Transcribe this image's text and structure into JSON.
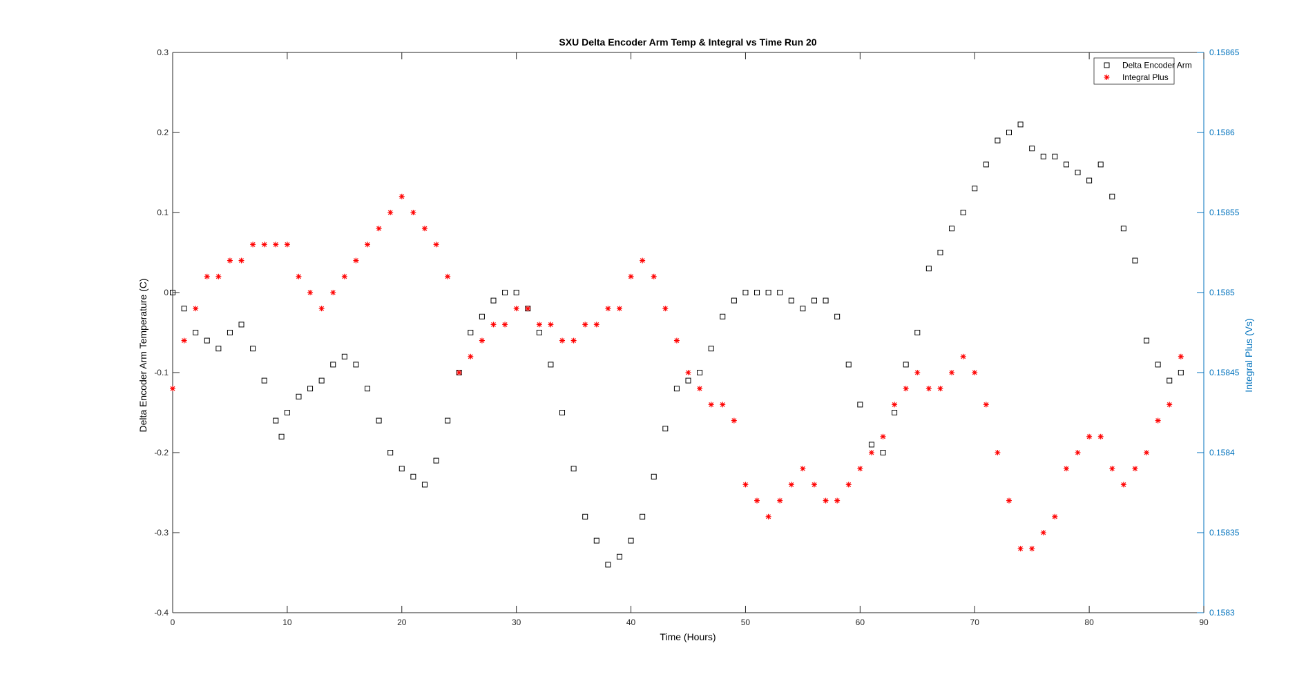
{
  "chart_data": {
    "type": "scatter",
    "title": "SXU Delta Encoder Arm Temp & Integral vs Time Run 20",
    "xlabel": "Time (Hours)",
    "ylabel_left": "Delta Encoder Arm Temperature (C)",
    "ylabel_right": "Integral Plus (Vs)",
    "xlim": [
      0,
      90
    ],
    "ylim_left": [
      -0.4,
      0.3
    ],
    "ylim_right": [
      0.1583,
      0.15865
    ],
    "x_ticks": [
      "0",
      "10",
      "20",
      "30",
      "40",
      "50",
      "60",
      "70",
      "80",
      "90"
    ],
    "y_ticks_left": [
      "-0.4",
      "-0.3",
      "-0.2",
      "-0.1",
      "0",
      "0.1",
      "0.2",
      "0.3"
    ],
    "y_ticks_right": [
      "0.1583",
      "0.15835",
      "0.1584",
      "0.15845",
      "0.1585",
      "0.15855",
      "0.1586",
      "0.15865"
    ],
    "grid": false,
    "legend_position": "top-right",
    "colors": {
      "left_axis": "#000000",
      "right_axis": "#0072BD",
      "series1": "#000000",
      "series2": "#FF0000"
    },
    "series": [
      {
        "name": "Delta Encoder Arm",
        "axis": "left",
        "marker": "square",
        "points": [
          [
            0,
            0
          ],
          [
            1,
            -0.02
          ],
          [
            2,
            -0.05
          ],
          [
            3,
            -0.06
          ],
          [
            4,
            -0.07
          ],
          [
            5,
            -0.05
          ],
          [
            6,
            -0.04
          ],
          [
            7,
            -0.07
          ],
          [
            8,
            -0.11
          ],
          [
            9,
            -0.16
          ],
          [
            9.5,
            -0.18
          ],
          [
            10,
            -0.15
          ],
          [
            11,
            -0.13
          ],
          [
            12,
            -0.12
          ],
          [
            13,
            -0.11
          ],
          [
            14,
            -0.09
          ],
          [
            15,
            -0.08
          ],
          [
            16,
            -0.09
          ],
          [
            17,
            -0.12
          ],
          [
            18,
            -0.16
          ],
          [
            19,
            -0.2
          ],
          [
            20,
            -0.22
          ],
          [
            21,
            -0.23
          ],
          [
            22,
            -0.24
          ],
          [
            23,
            -0.21
          ],
          [
            24,
            -0.16
          ],
          [
            25,
            -0.1
          ],
          [
            26,
            -0.05
          ],
          [
            27,
            -0.03
          ],
          [
            28,
            -0.01
          ],
          [
            29,
            0
          ],
          [
            30,
            0
          ],
          [
            31,
            -0.02
          ],
          [
            32,
            -0.05
          ],
          [
            33,
            -0.09
          ],
          [
            34,
            -0.15
          ],
          [
            35,
            -0.22
          ],
          [
            36,
            -0.28
          ],
          [
            37,
            -0.31
          ],
          [
            38,
            -0.34
          ],
          [
            39,
            -0.33
          ],
          [
            40,
            -0.31
          ],
          [
            41,
            -0.28
          ],
          [
            42,
            -0.23
          ],
          [
            43,
            -0.17
          ],
          [
            44,
            -0.12
          ],
          [
            45,
            -0.11
          ],
          [
            46,
            -0.1
          ],
          [
            47,
            -0.07
          ],
          [
            48,
            -0.03
          ],
          [
            49,
            -0.01
          ],
          [
            50,
            0
          ],
          [
            51,
            0
          ],
          [
            52,
            0
          ],
          [
            53,
            0
          ],
          [
            54,
            -0.01
          ],
          [
            55,
            -0.02
          ],
          [
            56,
            -0.01
          ],
          [
            57,
            -0.01
          ],
          [
            58,
            -0.03
          ],
          [
            59,
            -0.09
          ],
          [
            60,
            -0.14
          ],
          [
            61,
            -0.19
          ],
          [
            62,
            -0.2
          ],
          [
            63,
            -0.15
          ],
          [
            64,
            -0.09
          ],
          [
            65,
            -0.05
          ],
          [
            66,
            0.03
          ],
          [
            67,
            0.05
          ],
          [
            68,
            0.08
          ],
          [
            69,
            0.1
          ],
          [
            70,
            0.13
          ],
          [
            71,
            0.16
          ],
          [
            72,
            0.19
          ],
          [
            73,
            0.2
          ],
          [
            74,
            0.21
          ],
          [
            75,
            0.18
          ],
          [
            76,
            0.17
          ],
          [
            77,
            0.17
          ],
          [
            78,
            0.16
          ],
          [
            79,
            0.15
          ],
          [
            80,
            0.14
          ],
          [
            81,
            0.16
          ],
          [
            82,
            0.12
          ],
          [
            83,
            0.08
          ],
          [
            84,
            0.04
          ],
          [
            85,
            -0.06
          ],
          [
            86,
            -0.09
          ],
          [
            87,
            -0.11
          ],
          [
            88,
            -0.1
          ]
        ]
      },
      {
        "name": "Integral Plus",
        "axis": "right",
        "marker": "asterisk",
        "points": [
          [
            0,
            0.15844
          ],
          [
            1,
            0.15847
          ],
          [
            2,
            0.15849
          ],
          [
            3,
            0.15851
          ],
          [
            4,
            0.15851
          ],
          [
            5,
            0.15852
          ],
          [
            6,
            0.15852
          ],
          [
            7,
            0.15853
          ],
          [
            8,
            0.15853
          ],
          [
            9,
            0.15853
          ],
          [
            10,
            0.15853
          ],
          [
            11,
            0.15851
          ],
          [
            12,
            0.1585
          ],
          [
            13,
            0.15849
          ],
          [
            14,
            0.1585
          ],
          [
            15,
            0.15851
          ],
          [
            16,
            0.15852
          ],
          [
            17,
            0.15853
          ],
          [
            18,
            0.15854
          ],
          [
            19,
            0.15855
          ],
          [
            20,
            0.15856
          ],
          [
            21,
            0.15855
          ],
          [
            22,
            0.15854
          ],
          [
            23,
            0.15853
          ],
          [
            24,
            0.15851
          ],
          [
            25,
            0.15845
          ],
          [
            26,
            0.15846
          ],
          [
            27,
            0.15847
          ],
          [
            28,
            0.15848
          ],
          [
            29,
            0.15848
          ],
          [
            30,
            0.15849
          ],
          [
            31,
            0.15849
          ],
          [
            32,
            0.15848
          ],
          [
            33,
            0.15848
          ],
          [
            34,
            0.15847
          ],
          [
            35,
            0.15847
          ],
          [
            36,
            0.15848
          ],
          [
            37,
            0.15848
          ],
          [
            38,
            0.15849
          ],
          [
            39,
            0.15849
          ],
          [
            40,
            0.15851
          ],
          [
            41,
            0.15852
          ],
          [
            42,
            0.15851
          ],
          [
            43,
            0.15849
          ],
          [
            44,
            0.15847
          ],
          [
            45,
            0.15845
          ],
          [
            46,
            0.15844
          ],
          [
            47,
            0.15843
          ],
          [
            48,
            0.15843
          ],
          [
            49,
            0.15842
          ],
          [
            50,
            0.15838
          ],
          [
            51,
            0.15837
          ],
          [
            52,
            0.15836
          ],
          [
            53,
            0.15837
          ],
          [
            54,
            0.15838
          ],
          [
            55,
            0.15839
          ],
          [
            56,
            0.15838
          ],
          [
            57,
            0.15837
          ],
          [
            58,
            0.15837
          ],
          [
            59,
            0.15838
          ],
          [
            60,
            0.15839
          ],
          [
            61,
            0.1584
          ],
          [
            62,
            0.15841
          ],
          [
            63,
            0.15843
          ],
          [
            64,
            0.15844
          ],
          [
            65,
            0.15845
          ],
          [
            66,
            0.15844
          ],
          [
            67,
            0.15844
          ],
          [
            68,
            0.15845
          ],
          [
            69,
            0.15846
          ],
          [
            70,
            0.15845
          ],
          [
            71,
            0.15843
          ],
          [
            72,
            0.1584
          ],
          [
            73,
            0.15837
          ],
          [
            74,
            0.15834
          ],
          [
            75,
            0.15834
          ],
          [
            76,
            0.15835
          ],
          [
            77,
            0.15836
          ],
          [
            78,
            0.15839
          ],
          [
            79,
            0.1584
          ],
          [
            80,
            0.15841
          ],
          [
            81,
            0.15841
          ],
          [
            82,
            0.15839
          ],
          [
            83,
            0.15838
          ],
          [
            84,
            0.15839
          ],
          [
            85,
            0.1584
          ],
          [
            86,
            0.15842
          ],
          [
            87,
            0.15843
          ],
          [
            88,
            0.15846
          ]
        ]
      }
    ]
  }
}
